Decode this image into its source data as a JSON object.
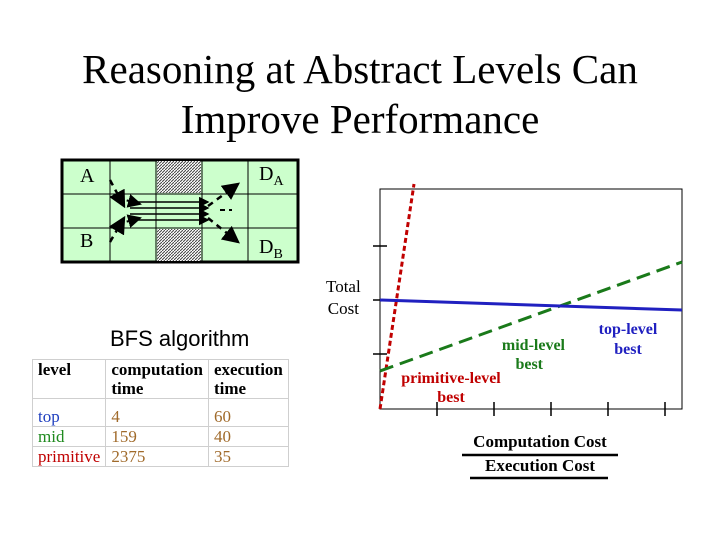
{
  "title": {
    "line1": "Reasoning at Abstract Levels Can",
    "line2": "Improve Performance"
  },
  "grid": {
    "label_a": "A",
    "label_da": "D",
    "label_da_sub": "A",
    "label_b": "B",
    "label_db": "D",
    "label_db_sub": "B"
  },
  "bfs_caption": "BFS algorithm",
  "table": {
    "headers": [
      {
        "l1": "level",
        "l2": ""
      },
      {
        "l1": "computation",
        "l2": "time"
      },
      {
        "l1": "execution",
        "l2": "time"
      }
    ],
    "rows": [
      {
        "level": "top",
        "computation": "4",
        "execution": "60"
      },
      {
        "level": "mid",
        "computation": "159",
        "execution": "40"
      },
      {
        "level": "primitive",
        "computation": "2375",
        "execution": "35"
      }
    ]
  },
  "chart": {
    "ylabel_line1": "Total",
    "ylabel_line2": "Cost",
    "label_primitive_l1": "primitive-level",
    "label_primitive_l2": "best",
    "label_mid_l1": "mid-level",
    "label_mid_l2": "best",
    "label_top_l1": "top-level",
    "label_top_l2": "best",
    "legend_1": "Computation Cost",
    "legend_2": "Execution Cost",
    "colors": {
      "primitive": "#c00000",
      "mid": "#1a7a1a",
      "top": "#2020c0"
    }
  }
}
